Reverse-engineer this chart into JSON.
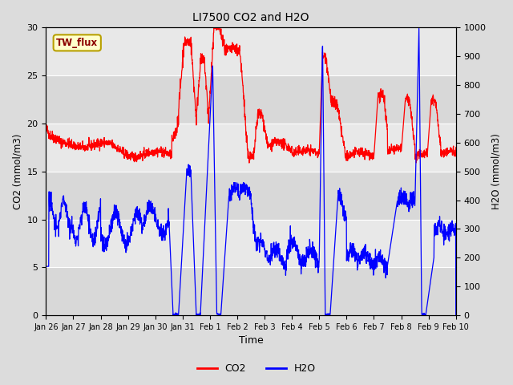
{
  "title": "LI7500 CO2 and H2O",
  "xlabel": "Time",
  "ylabel_left": "CO2 (mmol/m3)",
  "ylabel_right": "H2O (mmol/m3)",
  "ylim_left": [
    0,
    30
  ],
  "ylim_right": [
    0,
    1000
  ],
  "yticks_left": [
    0,
    5,
    10,
    15,
    20,
    25,
    30
  ],
  "yticks_right": [
    0,
    100,
    200,
    300,
    400,
    500,
    600,
    700,
    800,
    900,
    1000
  ],
  "xtick_labels": [
    "Jan 26",
    "Jan 27",
    "Jan 28",
    "Jan 29",
    "Jan 30",
    "Jan 31",
    "Feb 1",
    "Feb 2",
    "Feb 3",
    "Feb 4",
    "Feb 5",
    "Feb 6",
    "Feb 7",
    "Feb 8",
    "Feb 9",
    "Feb 10"
  ],
  "bg_color": "#dcdcdc",
  "plot_bg_color": "#e8e8e8",
  "hband_color_dark": "#d0d0d0",
  "hband_color_light": "#e8e8e8",
  "co2_color": "red",
  "h2o_color": "blue",
  "annotation_text": "TW_flux",
  "annotation_bg": "#ffffcc",
  "annotation_border": "#cccc00",
  "legend_co2": "CO2",
  "legend_h2o": "H2O",
  "n_points": 2000
}
